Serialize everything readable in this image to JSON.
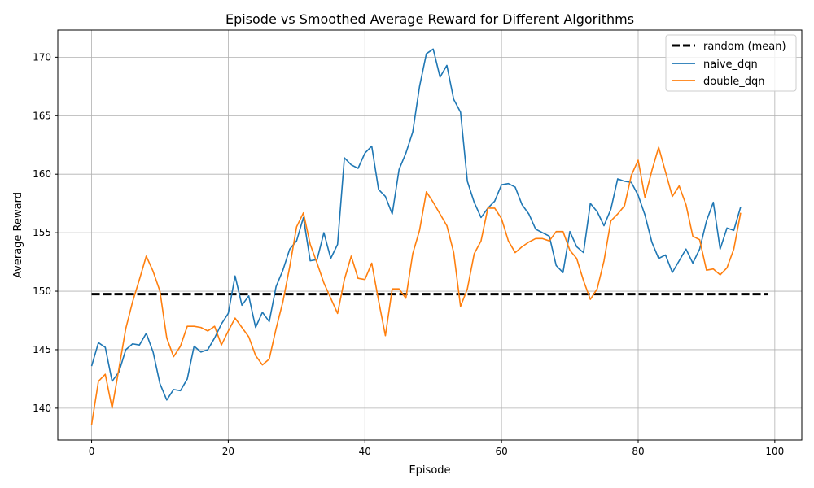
{
  "chart_data": {
    "type": "line",
    "title": "Episode vs Smoothed Average Reward for Different Algorithms",
    "xlabel": "Episode",
    "ylabel": "Average Reward",
    "xlim": [
      -4.95,
      103.95
    ],
    "ylim": [
      137.28,
      172.32
    ],
    "xticks": [
      0,
      20,
      40,
      60,
      80,
      100
    ],
    "yticks": [
      140,
      145,
      150,
      155,
      160,
      165,
      170
    ],
    "grid": true,
    "legend_position": "top-right",
    "random_mean": {
      "name": "random (mean)",
      "value": 149.75,
      "x_range": [
        0,
        99
      ],
      "color": "#000000"
    },
    "series": [
      {
        "name": "naive_dqn",
        "color": "#1f77b4",
        "values": [
          143.6,
          145.6,
          145.2,
          142.3,
          143.1,
          145.0,
          145.5,
          145.4,
          146.4,
          144.8,
          142.1,
          140.7,
          141.6,
          141.5,
          142.5,
          145.3,
          144.8,
          145.0,
          146.0,
          147.2,
          148.1,
          151.3,
          148.8,
          149.6,
          146.9,
          148.2,
          147.4,
          150.4,
          151.8,
          153.6,
          154.3,
          156.3,
          152.6,
          152.7,
          155.0,
          152.8,
          154.0,
          161.4,
          160.8,
          160.5,
          161.8,
          162.4,
          158.7,
          158.1,
          156.6,
          160.4,
          161.8,
          163.6,
          167.5,
          170.3,
          170.7,
          168.3,
          169.3,
          166.4,
          165.3,
          159.4,
          157.6,
          156.3,
          157.1,
          157.7,
          159.1,
          159.2,
          158.9,
          157.4,
          156.6,
          155.3,
          155.0,
          154.7,
          152.2,
          151.6,
          155.1,
          153.8,
          153.3,
          157.5,
          156.8,
          155.6,
          157.0,
          159.6,
          159.4,
          159.3,
          158.2,
          156.5,
          154.2,
          152.8,
          153.1,
          151.6,
          152.6,
          153.6,
          152.4,
          153.6,
          156.0,
          157.6,
          153.6,
          155.4,
          155.2,
          157.2
        ]
      },
      {
        "name": "double_dqn",
        "color": "#ff7f0e",
        "values": [
          138.6,
          142.3,
          142.9,
          140.0,
          143.4,
          146.8,
          149.1,
          151.0,
          153.0,
          151.7,
          150.0,
          146.0,
          144.4,
          145.3,
          147.0,
          147.0,
          146.9,
          146.6,
          147.0,
          145.4,
          146.6,
          147.7,
          146.9,
          146.1,
          144.5,
          143.7,
          144.2,
          146.8,
          149.1,
          152.1,
          155.5,
          156.7,
          154.0,
          152.4,
          150.7,
          149.4,
          148.1,
          151.0,
          153.0,
          151.1,
          151.0,
          152.4,
          149.2,
          146.2,
          150.2,
          150.2,
          149.4,
          153.2,
          155.2,
          158.5,
          157.6,
          156.6,
          155.6,
          153.3,
          148.7,
          150.2,
          153.2,
          154.3,
          157.1,
          157.1,
          156.2,
          154.3,
          153.3,
          153.8,
          154.2,
          154.5,
          154.5,
          154.3,
          155.1,
          155.1,
          153.5,
          152.8,
          150.9,
          149.3,
          150.2,
          152.6,
          156.0,
          156.6,
          157.3,
          159.9,
          161.2,
          158.0,
          160.3,
          162.3,
          160.2,
          158.1,
          159.0,
          157.4,
          154.7,
          154.4,
          151.8,
          151.9,
          151.4,
          152.0,
          153.6,
          156.7
        ]
      }
    ]
  }
}
